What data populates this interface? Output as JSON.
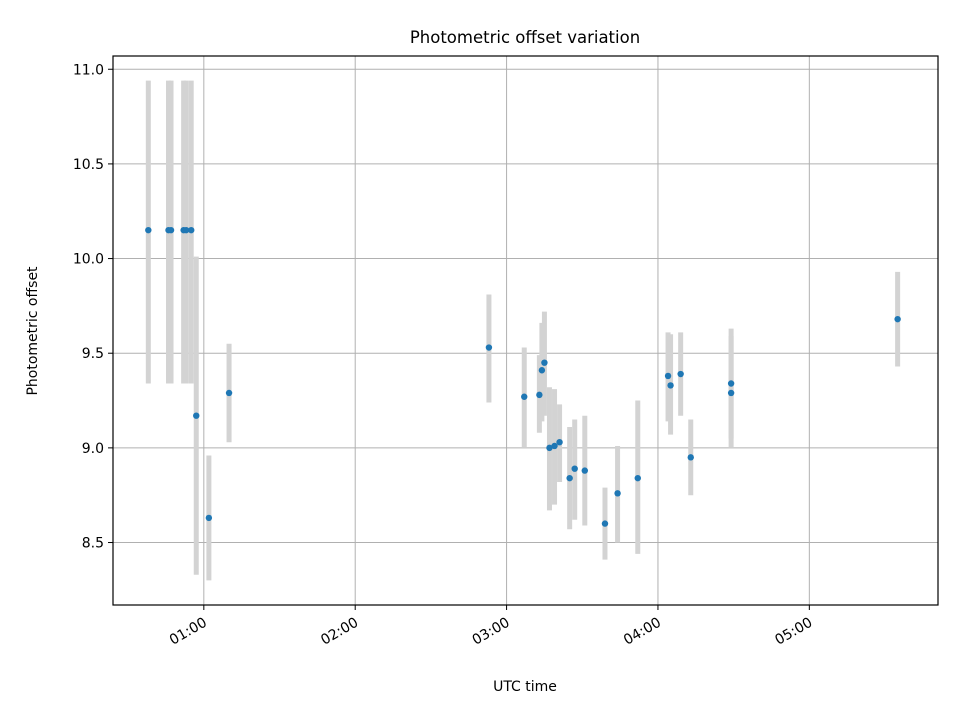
{
  "chart_data": {
    "type": "scatter",
    "title": "Photometric offset variation",
    "xlabel": "UTC time",
    "ylabel": "Photometric offset",
    "x_unit": "UTC time (HH:MM)",
    "xlim": [
      "00:24",
      "05:51"
    ],
    "ylim": [
      8.17,
      11.07
    ],
    "x_ticks": [
      "01:00",
      "02:00",
      "03:00",
      "04:00",
      "05:00"
    ],
    "y_ticks": [
      8.5,
      9.0,
      9.5,
      10.0,
      10.5,
      11.0
    ],
    "y_tick_labels": [
      "8.5",
      "9.0",
      "9.5",
      "10.0",
      "10.5",
      "11.0"
    ],
    "x_tick_label_rotation_deg": 30,
    "grid": true,
    "legend": null,
    "colors": {
      "point": "#1f77b4",
      "errorbar": "#d3d3d3",
      "grid": "#b0b0b0",
      "axes": "#000000"
    },
    "points": [
      {
        "x": "00:38",
        "y": 10.15,
        "yerr_low": 9.34,
        "yerr_high": 10.94
      },
      {
        "x": "00:46",
        "y": 10.15,
        "yerr_low": 9.34,
        "yerr_high": 10.94
      },
      {
        "x": "00:47",
        "y": 10.15,
        "yerr_low": 9.34,
        "yerr_high": 10.94
      },
      {
        "x": "00:52",
        "y": 10.15,
        "yerr_low": 9.34,
        "yerr_high": 10.94
      },
      {
        "x": "00:53",
        "y": 10.15,
        "yerr_low": 9.34,
        "yerr_high": 10.94
      },
      {
        "x": "00:55",
        "y": 10.15,
        "yerr_low": 9.34,
        "yerr_high": 10.94
      },
      {
        "x": "00:57",
        "y": 9.17,
        "yerr_low": 8.33,
        "yerr_high": 10.01
      },
      {
        "x": "01:02",
        "y": 8.63,
        "yerr_low": 8.3,
        "yerr_high": 8.96
      },
      {
        "x": "01:10",
        "y": 9.29,
        "yerr_low": 9.03,
        "yerr_high": 9.55
      },
      {
        "x": "02:53",
        "y": 9.53,
        "yerr_low": 9.24,
        "yerr_high": 9.81
      },
      {
        "x": "03:07",
        "y": 9.27,
        "yerr_low": 9.0,
        "yerr_high": 9.53
      },
      {
        "x": "03:13",
        "y": 9.28,
        "yerr_low": 9.08,
        "yerr_high": 9.49
      },
      {
        "x": "03:14",
        "y": 9.41,
        "yerr_low": 9.14,
        "yerr_high": 9.66
      },
      {
        "x": "03:15",
        "y": 9.45,
        "yerr_low": 9.17,
        "yerr_high": 9.72
      },
      {
        "x": "03:17",
        "y": 9.0,
        "yerr_low": 8.67,
        "yerr_high": 9.32
      },
      {
        "x": "03:19",
        "y": 9.01,
        "yerr_low": 8.7,
        "yerr_high": 9.31
      },
      {
        "x": "03:21",
        "y": 9.03,
        "yerr_low": 8.82,
        "yerr_high": 9.23
      },
      {
        "x": "03:25",
        "y": 8.84,
        "yerr_low": 8.57,
        "yerr_high": 9.11
      },
      {
        "x": "03:27",
        "y": 8.89,
        "yerr_low": 8.62,
        "yerr_high": 9.15
      },
      {
        "x": "03:31",
        "y": 8.88,
        "yerr_low": 8.59,
        "yerr_high": 9.17
      },
      {
        "x": "03:39",
        "y": 8.6,
        "yerr_low": 8.41,
        "yerr_high": 8.79
      },
      {
        "x": "03:44",
        "y": 8.76,
        "yerr_low": 8.5,
        "yerr_high": 9.01
      },
      {
        "x": "03:52",
        "y": 8.84,
        "yerr_low": 8.44,
        "yerr_high": 9.25
      },
      {
        "x": "04:04",
        "y": 9.38,
        "yerr_low": 9.14,
        "yerr_high": 9.61
      },
      {
        "x": "04:05",
        "y": 9.33,
        "yerr_low": 9.07,
        "yerr_high": 9.6
      },
      {
        "x": "04:09",
        "y": 9.39,
        "yerr_low": 9.17,
        "yerr_high": 9.61
      },
      {
        "x": "04:13",
        "y": 8.95,
        "yerr_low": 8.75,
        "yerr_high": 9.15
      },
      {
        "x": "04:29",
        "y": 9.29,
        "yerr_low": 9.0,
        "yerr_high": 9.59
      },
      {
        "x": "04:29",
        "y": 9.34,
        "yerr_low": 9.05,
        "yerr_high": 9.63
      },
      {
        "x": "05:35",
        "y": 9.68,
        "yerr_low": 9.43,
        "yerr_high": 9.93
      }
    ]
  }
}
